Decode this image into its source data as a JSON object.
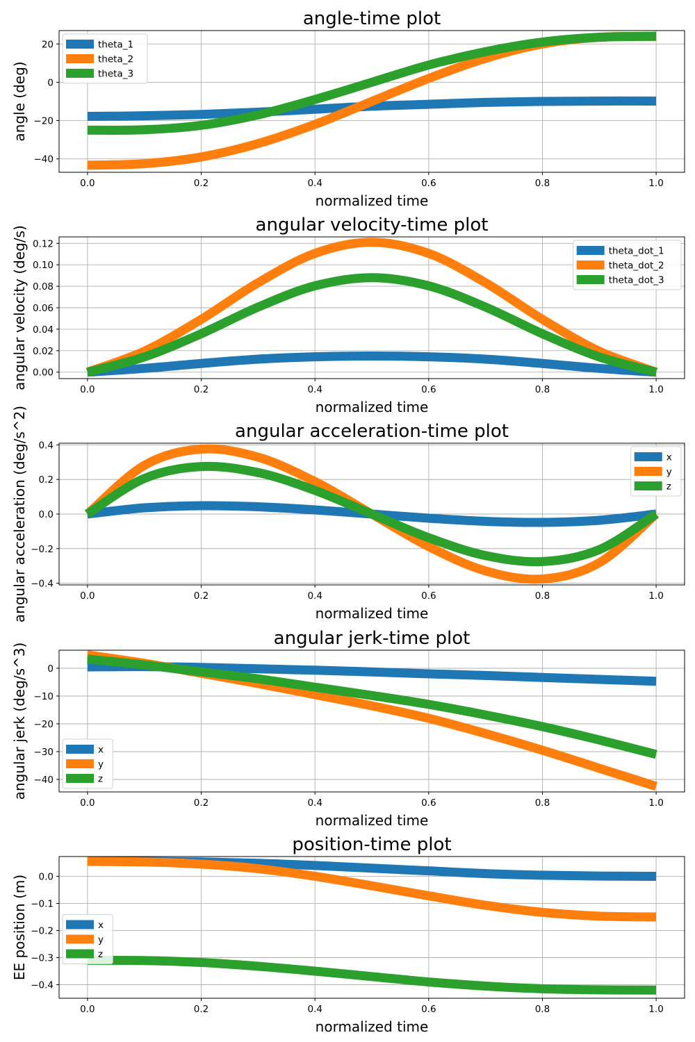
{
  "chart_data": [
    {
      "type": "line",
      "title": "angle-time plot",
      "xlabel": "normalized time",
      "ylabel": "angle (deg)",
      "xlim": [
        -0.05,
        1.05
      ],
      "ylim": [
        -47,
        27
      ],
      "xticks": [
        0.0,
        0.2,
        0.4,
        0.6,
        0.8,
        1.0
      ],
      "xtick_labels": [
        "0.0",
        "0.2",
        "0.4",
        "0.6",
        "0.8",
        "1.0"
      ],
      "yticks": [
        -40,
        -20,
        0,
        20
      ],
      "ytick_labels": [
        "−40",
        "−20",
        "0",
        "20"
      ],
      "grid": true,
      "legend_position": "top-left",
      "x": [
        0.0,
        0.1,
        0.2,
        0.3,
        0.4,
        0.5,
        0.6,
        0.7,
        0.8,
        0.9,
        1.0
      ],
      "series": [
        {
          "name": "theta_1",
          "color": "#1f77b4",
          "values": [
            -17.8,
            -17.5,
            -16.8,
            -15.6,
            -14.1,
            -12.5,
            -11.5,
            -10.5,
            -10.0,
            -9.8,
            -9.8
          ]
        },
        {
          "name": "theta_2",
          "color": "#ff7f0e",
          "values": [
            -43.3,
            -42.5,
            -39.0,
            -32.0,
            -22.0,
            -10.0,
            2.0,
            12.5,
            20.0,
            23.5,
            24.0
          ]
        },
        {
          "name": "theta_3",
          "color": "#2ca02c",
          "values": [
            -25.0,
            -24.8,
            -22.5,
            -17.0,
            -9.0,
            0.0,
            9.0,
            16.0,
            21.0,
            23.5,
            24.0
          ]
        }
      ]
    },
    {
      "type": "line",
      "title": "angular velocity-time plot",
      "xlabel": "normalized time",
      "ylabel": "angular velocity (deg/s)",
      "xlim": [
        -0.05,
        1.05
      ],
      "ylim": [
        -0.006,
        0.126
      ],
      "xticks": [
        0.0,
        0.2,
        0.4,
        0.6,
        0.8,
        1.0
      ],
      "xtick_labels": [
        "0.0",
        "0.2",
        "0.4",
        "0.6",
        "0.8",
        "1.0"
      ],
      "yticks": [
        0.0,
        0.02,
        0.04,
        0.06,
        0.08,
        0.1,
        0.12
      ],
      "ytick_labels": [
        "0.00",
        "0.02",
        "0.04",
        "0.06",
        "0.08",
        "0.10",
        "0.12"
      ],
      "grid": true,
      "legend_position": "top-right",
      "x": [
        0.0,
        0.1,
        0.2,
        0.3,
        0.4,
        0.5,
        0.6,
        0.7,
        0.8,
        0.9,
        1.0
      ],
      "series": [
        {
          "name": "theta_dot_1",
          "color": "#1f77b4",
          "values": [
            0.0,
            0.0035,
            0.0081,
            0.0121,
            0.0143,
            0.015,
            0.0143,
            0.0121,
            0.0081,
            0.0035,
            0.0
          ]
        },
        {
          "name": "theta_dot_2",
          "color": "#ff7f0e",
          "values": [
            0.0,
            0.0195,
            0.0492,
            0.0833,
            0.1106,
            0.121,
            0.1106,
            0.0833,
            0.0492,
            0.0195,
            0.0
          ]
        },
        {
          "name": "theta_dot_3",
          "color": "#2ca02c",
          "values": [
            0.0,
            0.0142,
            0.0358,
            0.0606,
            0.0804,
            0.088,
            0.0804,
            0.0606,
            0.0358,
            0.0142,
            0.0
          ]
        }
      ]
    },
    {
      "type": "line",
      "title": "angular acceleration-time plot",
      "xlabel": "normalized time",
      "ylabel": "angular acceleration (deg/s^2)",
      "xlim": [
        -0.05,
        1.05
      ],
      "ylim": [
        -0.41,
        0.41
      ],
      "xticks": [
        0.0,
        0.2,
        0.4,
        0.6,
        0.8,
        1.0
      ],
      "xtick_labels": [
        "0.0",
        "0.2",
        "0.4",
        "0.6",
        "0.8",
        "1.0"
      ],
      "yticks": [
        -0.4,
        -0.2,
        0.0,
        0.2,
        0.4
      ],
      "ytick_labels": [
        "−0.4",
        "−0.2",
        "0.0",
        "0.2",
        "0.4"
      ],
      "grid": true,
      "legend_position": "top-right",
      "x": [
        0.0,
        0.1,
        0.2,
        0.3,
        0.4,
        0.5,
        0.6,
        0.7,
        0.8,
        0.9,
        1.0
      ],
      "series": [
        {
          "name": "x",
          "color": "#1f77b4",
          "values": [
            0.0,
            0.036,
            0.048,
            0.042,
            0.024,
            0.0,
            -0.024,
            -0.042,
            -0.048,
            -0.036,
            0.0
          ]
        },
        {
          "name": "y",
          "color": "#ff7f0e",
          "values": [
            0.0,
            0.282,
            0.376,
            0.329,
            0.188,
            0.0,
            -0.188,
            -0.329,
            -0.376,
            -0.282,
            0.0
          ]
        },
        {
          "name": "z",
          "color": "#2ca02c",
          "values": [
            0.0,
            0.206,
            0.275,
            0.24,
            0.137,
            0.0,
            -0.137,
            -0.24,
            -0.275,
            -0.206,
            0.0
          ]
        }
      ]
    },
    {
      "type": "line",
      "title": "angular jerk-time plot",
      "xlabel": "normalized time",
      "ylabel": "angular jerk (deg/s^3)",
      "xlim": [
        -0.05,
        1.05
      ],
      "ylim": [
        -44.5,
        6.5
      ],
      "xticks": [
        0.0,
        0.2,
        0.4,
        0.6,
        0.8,
        1.0
      ],
      "xtick_labels": [
        "0.0",
        "0.2",
        "0.4",
        "0.6",
        "0.8",
        "1.0"
      ],
      "yticks": [
        -40,
        -30,
        -20,
        -10,
        0
      ],
      "ytick_labels": [
        "−40",
        "−30",
        "−20",
        "−10",
        "0"
      ],
      "grid": true,
      "legend_position": "lower-left",
      "x": [
        0.0,
        0.1,
        0.2,
        0.3,
        0.4,
        0.5,
        0.6,
        0.7,
        0.8,
        0.9,
        1.0
      ],
      "series": [
        {
          "name": "x",
          "color": "#1f77b4",
          "values": [
            0.5,
            0.6,
            0.3,
            -0.2,
            -0.7,
            -1.3,
            -2.0,
            -2.6,
            -3.3,
            -4.0,
            -4.7
          ]
        },
        {
          "name": "y",
          "color": "#ff7f0e",
          "values": [
            4.8,
            1.8,
            -1.8,
            -5.5,
            -9.5,
            -13.5,
            -18.0,
            -23.5,
            -29.5,
            -36.0,
            -42.5
          ]
        },
        {
          "name": "z",
          "color": "#2ca02c",
          "values": [
            3.3,
            1.2,
            -1.3,
            -3.8,
            -6.8,
            -9.8,
            -13.0,
            -16.8,
            -21.0,
            -25.8,
            -31.0
          ]
        }
      ]
    },
    {
      "type": "line",
      "title": "position-time plot",
      "xlabel": "normalized time",
      "ylabel": "EE position (m)",
      "xlim": [
        -0.05,
        1.05
      ],
      "ylim": [
        -0.45,
        0.073
      ],
      "xticks": [
        0.0,
        0.2,
        0.4,
        0.6,
        0.8,
        1.0
      ],
      "xtick_labels": [
        "0.0",
        "0.2",
        "0.4",
        "0.6",
        "0.8",
        "1.0"
      ],
      "yticks": [
        -0.4,
        -0.3,
        -0.2,
        -0.1,
        0.0
      ],
      "ytick_labels": [
        "−0.4",
        "−0.3",
        "−0.2",
        "−0.1",
        "0.0"
      ],
      "grid": true,
      "legend_position": "center-left",
      "x": [
        0.0,
        0.1,
        0.2,
        0.3,
        0.4,
        0.5,
        0.6,
        0.7,
        0.8,
        0.9,
        1.0
      ],
      "series": [
        {
          "name": "x",
          "color": "#1f77b4",
          "values": [
            0.055,
            0.055,
            0.053,
            0.048,
            0.04,
            0.03,
            0.02,
            0.01,
            0.004,
            0.001,
            0.0
          ]
        },
        {
          "name": "y",
          "color": "#ff7f0e",
          "values": [
            0.055,
            0.053,
            0.045,
            0.028,
            0.0,
            -0.035,
            -0.072,
            -0.107,
            -0.133,
            -0.147,
            -0.15
          ]
        },
        {
          "name": "z",
          "color": "#2ca02c",
          "values": [
            -0.31,
            -0.311,
            -0.318,
            -0.332,
            -0.35,
            -0.37,
            -0.39,
            -0.405,
            -0.415,
            -0.419,
            -0.42
          ]
        }
      ]
    }
  ]
}
